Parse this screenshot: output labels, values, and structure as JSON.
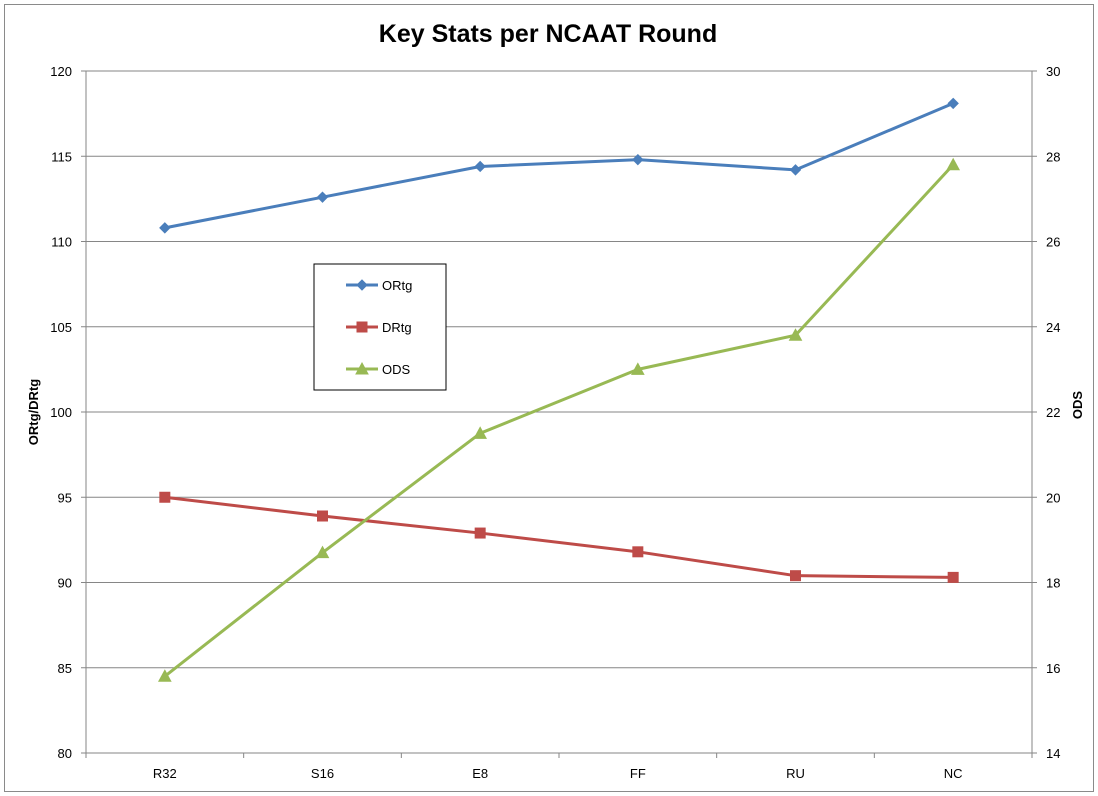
{
  "chart_data": {
    "type": "line",
    "title": "Key Stats per NCAAT Round",
    "categories": [
      "R32",
      "S16",
      "E8",
      "FF",
      "RU",
      "NC"
    ],
    "y_left": {
      "label": "ORtg/DRtg",
      "range": [
        80,
        120
      ],
      "ticks": [
        80,
        85,
        90,
        95,
        100,
        105,
        110,
        115,
        120
      ]
    },
    "y_right": {
      "label": "ODS",
      "range": [
        14,
        30
      ],
      "ticks": [
        14,
        16,
        18,
        20,
        22,
        24,
        26,
        28,
        30
      ]
    },
    "grid": "horizontal major gridlines",
    "legend": {
      "placement": "inside-left",
      "entries": [
        "ORtg",
        "DRtg",
        "ODS"
      ]
    },
    "series": [
      {
        "name": "ORtg",
        "axis": "left",
        "marker": "diamond",
        "color": "#4a7ebb",
        "values": [
          110.8,
          112.6,
          114.4,
          114.8,
          114.2,
          118.1
        ]
      },
      {
        "name": "DRtg",
        "axis": "left",
        "marker": "square",
        "color": "#be4b48",
        "values": [
          95.0,
          93.9,
          92.9,
          91.8,
          90.4,
          90.3
        ]
      },
      {
        "name": "ODS",
        "axis": "right",
        "marker": "triangle",
        "color": "#98b954",
        "values": [
          15.8,
          18.7,
          21.5,
          23.0,
          23.8,
          27.8
        ]
      }
    ]
  }
}
